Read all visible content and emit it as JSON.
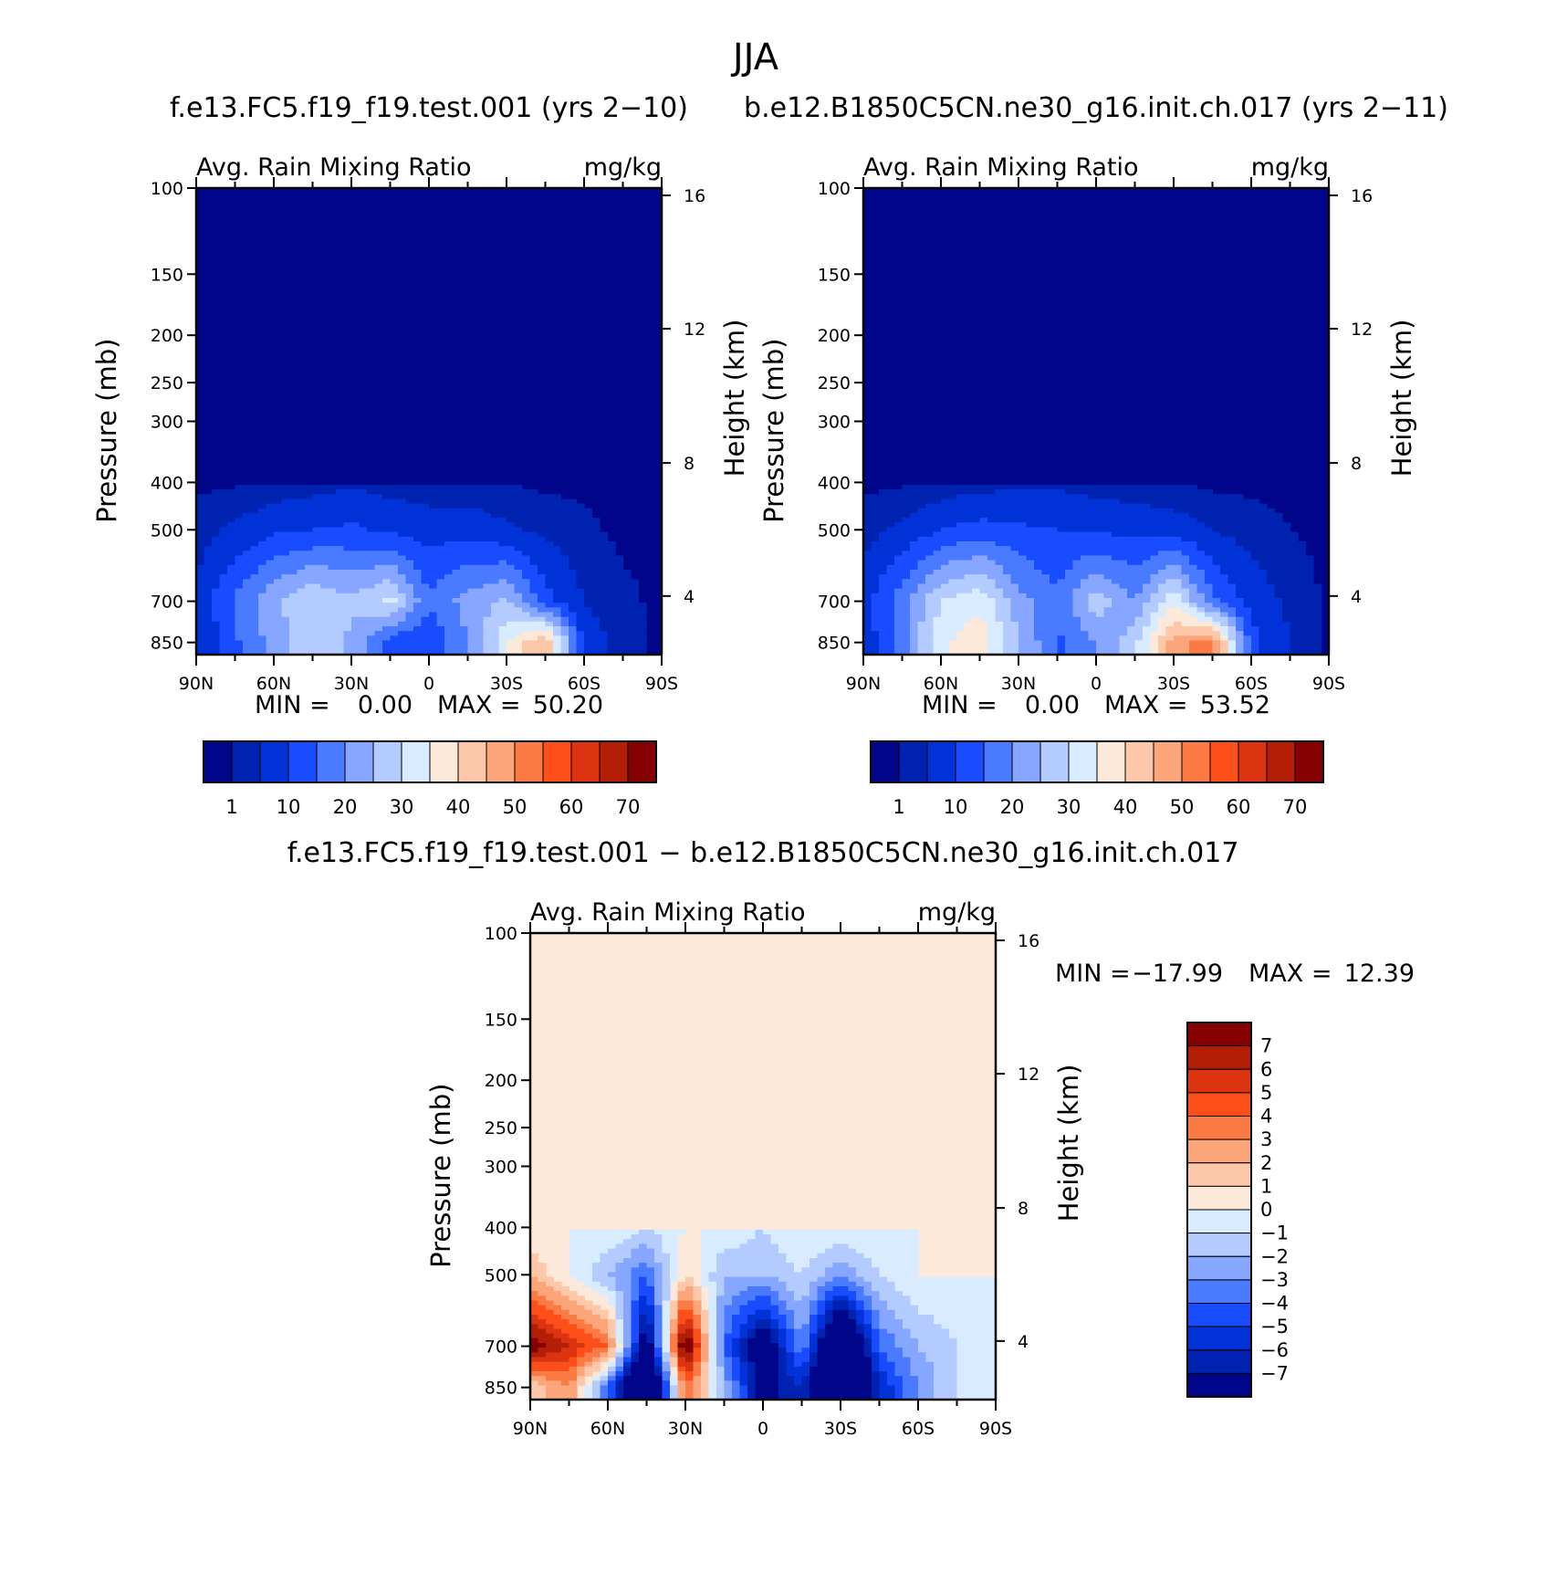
{
  "title": "JJA",
  "panels": [
    {
      "case_title": "f.e13.FC5.f19_f19.test.001 (yrs 2−10)",
      "left_string": "Avg. Rain Mixing Ratio",
      "right_string": "mg/kg",
      "min_label": "MIN =",
      "min_value": "0.00",
      "max_label": "MAX =",
      "max_value": "50.20"
    },
    {
      "case_title": "b.e12.B1850C5CN.ne30_g16.init.ch.017 (yrs 2−11)",
      "left_string": "Avg. Rain Mixing Ratio",
      "right_string": "mg/kg",
      "min_label": "MIN =",
      "min_value": "0.00",
      "max_label": "MAX =",
      "max_value": "53.52"
    },
    {
      "case_title": "f.e13.FC5.f19_f19.test.001 − b.e12.B1850C5CN.ne30_g16.init.ch.017",
      "left_string": "Avg. Rain Mixing Ratio",
      "right_string": "mg/kg",
      "min_label": "MIN =",
      "min_value": "−17.99",
      "max_label": "MAX =",
      "max_value": "12.39"
    }
  ],
  "axes": {
    "ylabel": "Pressure (mb)",
    "y2label": "Height (km)",
    "pressure_ticks": [
      100,
      150,
      200,
      250,
      300,
      400,
      500,
      700,
      850
    ],
    "height_ticks": [
      "16",
      "12",
      "8",
      "4"
    ],
    "height_tick_pressures": [
      103.5,
      194,
      365,
      683
    ],
    "lat_ticks": [
      "90N",
      "60N",
      "30N",
      "0",
      "30S",
      "60S",
      "90S"
    ]
  },
  "colorbar_abs": {
    "colors": [
      "#00058a",
      "#0022b0",
      "#0032d8",
      "#1a4cff",
      "#4a7aff",
      "#86a6ff",
      "#b4cbff",
      "#d8ebff",
      "#fde9d9",
      "#fdc8a9",
      "#fca47a",
      "#fc7b45",
      "#fc4f1a",
      "#dc3410",
      "#b31e07",
      "#850000"
    ],
    "labels": [
      "1",
      "10",
      "20",
      "30",
      "40",
      "50",
      "60",
      "70"
    ]
  },
  "colorbar_diff": {
    "colors": [
      "#00058a",
      "#0022b0",
      "#0032d8",
      "#1a4cff",
      "#4a7aff",
      "#86a6ff",
      "#b4cbff",
      "#d8ebff",
      "#fde9d9",
      "#fdc8a9",
      "#fca47a",
      "#fc7b45",
      "#fc4f1a",
      "#dc3410",
      "#b31e07",
      "#850000"
    ],
    "labels": [
      "7",
      "6",
      "5",
      "4",
      "3",
      "2",
      "1",
      "0",
      "−1",
      "−2",
      "−3",
      "−4",
      "−5",
      "−6",
      "−7"
    ]
  },
  "chart_data": [
    {
      "type": "heatmap",
      "title": "f.e13.FC5.f19_f19.test.001 (yrs 2−10)",
      "subtitle": "Avg. Rain Mixing Ratio",
      "units": "mg/kg",
      "xlabel": "",
      "ylabel": "Pressure (mb)",
      "y2label": "Height (km)",
      "x_range": [
        "90N",
        "90S"
      ],
      "y_range": [
        850,
        100
      ],
      "y_scale": "log",
      "contour_levels": [
        1,
        5,
        10,
        15,
        20,
        25,
        30,
        35,
        40,
        45,
        50,
        55,
        60,
        65,
        70
      ],
      "min": 0.0,
      "max": 50.2,
      "x": [
        90,
        75,
        60,
        45,
        30,
        15,
        0,
        -15,
        -30,
        -45,
        -60,
        -75,
        -90
      ],
      "y": [
        850,
        700,
        500,
        400
      ],
      "values": [
        [
          4,
          14,
          22,
          28,
          24,
          12,
          10,
          20,
          34,
          46,
          8,
          3,
          0
        ],
        [
          6,
          16,
          24,
          30,
          26,
          32,
          16,
          22,
          26,
          12,
          5,
          2,
          0
        ],
        [
          3,
          6,
          9,
          10,
          11,
          9,
          8,
          8,
          6,
          4,
          2,
          0,
          0
        ],
        [
          0,
          0.5,
          2,
          3,
          4,
          3,
          2,
          2,
          1,
          0,
          0,
          0,
          0
        ]
      ]
    },
    {
      "type": "heatmap",
      "title": "b.e12.B1850C5CN.ne30_g16.init.ch.017 (yrs 2−11)",
      "subtitle": "Avg. Rain Mixing Ratio",
      "units": "mg/kg",
      "xlabel": "",
      "ylabel": "Pressure (mb)",
      "y2label": "Height (km)",
      "x_range": [
        "90N",
        "90S"
      ],
      "y_range": [
        850,
        100
      ],
      "y_scale": "log",
      "contour_levels": [
        1,
        5,
        10,
        15,
        20,
        25,
        30,
        35,
        40,
        45,
        50,
        55,
        60,
        65,
        70
      ],
      "min": 0.0,
      "max": 53.52,
      "x": [
        90,
        75,
        60,
        45,
        30,
        15,
        0,
        -15,
        -30,
        -45,
        -60,
        -75,
        -90
      ],
      "y": [
        850,
        700,
        500,
        400
      ],
      "values": [
        [
          6,
          18,
          34,
          38,
          26,
          14,
          20,
          28,
          48,
          52,
          12,
          5,
          0
        ],
        [
          8,
          18,
          30,
          34,
          22,
          16,
          28,
          20,
          34,
          16,
          8,
          4,
          0
        ],
        [
          3,
          6,
          10,
          12,
          11,
          10,
          9,
          9,
          8,
          5,
          3,
          1,
          0
        ],
        [
          0,
          0.5,
          2,
          3,
          4,
          4,
          3,
          2,
          1,
          0,
          0,
          0,
          0
        ]
      ]
    },
    {
      "type": "heatmap",
      "title": "f.e13.FC5.f19_f19.test.001 − b.e12.B1850C5CN.ne30_g16.init.ch.017",
      "subtitle": "Avg. Rain Mixing Ratio",
      "units": "mg/kg",
      "xlabel": "",
      "ylabel": "Pressure (mb)",
      "y2label": "Height (km)",
      "x_range": [
        "90N",
        "90S"
      ],
      "y_range": [
        850,
        100
      ],
      "y_scale": "log",
      "contour_levels": [
        -7,
        -6,
        -5,
        -4,
        -3,
        -2,
        -1,
        0,
        1,
        2,
        3,
        4,
        5,
        6,
        7
      ],
      "min": -17.99,
      "max": 12.39,
      "x": [
        90,
        75,
        60,
        45,
        30,
        15,
        0,
        -15,
        -30,
        -45,
        -60,
        -75,
        -90
      ],
      "y": [
        850,
        700,
        500,
        400
      ],
      "values": [
        [
          1,
          3,
          -4,
          -14,
          4,
          -2,
          -8,
          -6,
          -14,
          -6,
          -3,
          -1,
          0
        ],
        [
          8,
          6,
          4,
          -9,
          9,
          -4,
          -9,
          -3,
          -12,
          -4,
          -2,
          -1,
          0
        ],
        [
          2,
          0,
          -2,
          -4,
          1,
          -2,
          -2,
          -1,
          -3,
          -1,
          0,
          0,
          0
        ],
        [
          0,
          0,
          0,
          -1,
          0,
          0,
          -1,
          0,
          0,
          0,
          0,
          0,
          0
        ]
      ]
    }
  ]
}
